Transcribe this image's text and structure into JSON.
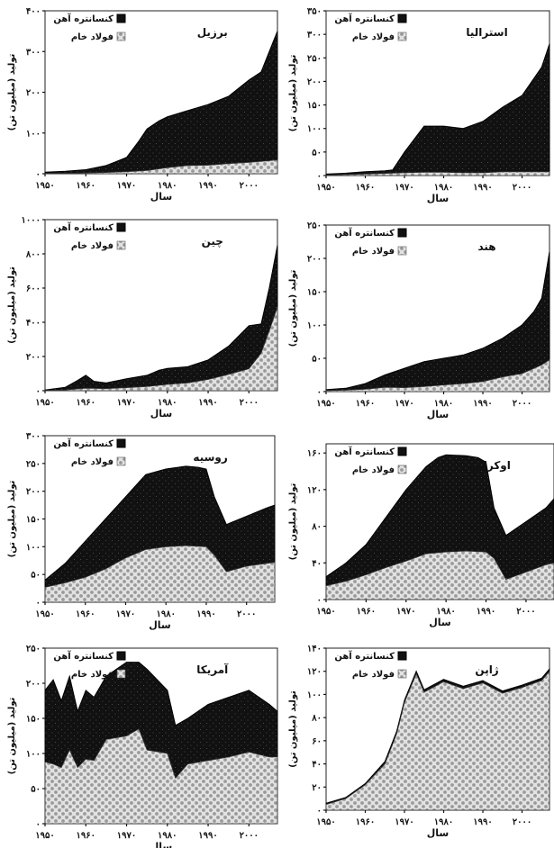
{
  "legend": {
    "ore": "کنسانتره آهن",
    "steel": "فولاد خام"
  },
  "axis_labels": {
    "y": "تولید (میلیون تن)",
    "x": "سال"
  },
  "colors": {
    "ore": "#111111",
    "steel_fill": "#e2e2e2",
    "steel_dot": "#9a9a9a"
  },
  "chart_data": [
    {
      "id": "brazil",
      "type": "area",
      "title": "برزیل",
      "ylim": [
        0,
        400
      ],
      "yticks": [
        0,
        100,
        200,
        300,
        400
      ],
      "ytick_labels": [
        "۰",
        "۱۰۰",
        "۲۰۰",
        "۳۰۰",
        "۴۰۰"
      ],
      "xlim": [
        1950,
        2007
      ],
      "xticks": [
        1950,
        1960,
        1970,
        1980,
        1990,
        2000
      ],
      "xtick_labels": [
        "۱۹۵۰",
        "۱۹۶۰",
        "۱۹۷۰",
        "۱۹۸۰",
        "۱۹۹۰",
        "۲۰۰۰"
      ],
      "series": [
        {
          "name": "فولاد خام",
          "x": [
            1950,
            1955,
            1960,
            1965,
            1970,
            1975,
            1980,
            1985,
            1990,
            1995,
            2000,
            2005,
            2007
          ],
          "values": [
            1,
            1.2,
            2,
            3,
            5,
            8,
            15,
            20,
            21,
            25,
            28,
            32,
            34
          ]
        },
        {
          "name": "کنسانتره آهن",
          "x": [
            1950,
            1955,
            1960,
            1965,
            1970,
            1973,
            1975,
            1978,
            1980,
            1985,
            1990,
            1995,
            2000,
            2003,
            2005,
            2007
          ],
          "values": [
            4,
            6,
            10,
            20,
            40,
            80,
            110,
            130,
            140,
            155,
            170,
            190,
            230,
            250,
            300,
            350
          ]
        }
      ]
    },
    {
      "id": "australia",
      "type": "area",
      "title": "استرالیا",
      "ylim": [
        0,
        350
      ],
      "yticks": [
        0,
        50,
        100,
        150,
        200,
        250,
        300,
        350
      ],
      "ytick_labels": [
        "۰",
        "۵۰",
        "۱۰۰",
        "۱۵۰",
        "۲۰۰",
        "۲۵۰",
        "۳۰۰",
        "۳۵۰"
      ],
      "xlim": [
        1950,
        2007
      ],
      "xticks": [
        1950,
        1960,
        1970,
        1980,
        1990,
        2000
      ],
      "xtick_labels": [
        "۱۹۵۰",
        "۱۹۶۰",
        "۱۹۷۰",
        "۱۹۸۰",
        "۱۹۹۰",
        "۲۰۰۰"
      ],
      "series": [
        {
          "name": "فولاد خام",
          "x": [
            1950,
            1960,
            1970,
            1975,
            1980,
            1985,
            1990,
            1995,
            2000,
            2007
          ],
          "values": [
            1,
            3,
            6,
            7,
            7,
            6,
            6,
            8,
            8,
            8
          ]
        },
        {
          "name": "کنسانتره آهن",
          "x": [
            1950,
            1955,
            1960,
            1965,
            1967,
            1970,
            1975,
            1980,
            1985,
            1990,
            1995,
            2000,
            2005,
            2007
          ],
          "values": [
            3,
            5,
            8,
            10,
            12,
            50,
            105,
            105,
            100,
            115,
            145,
            170,
            230,
            280
          ]
        }
      ]
    },
    {
      "id": "china",
      "type": "area",
      "title": "چین",
      "ylim": [
        0,
        1000
      ],
      "yticks": [
        0,
        200,
        400,
        600,
        800,
        1000
      ],
      "ytick_labels": [
        "۰",
        "۲۰۰",
        "۴۰۰",
        "۶۰۰",
        "۸۰۰",
        "۱۰۰۰"
      ],
      "xlim": [
        1950,
        2007
      ],
      "xticks": [
        1950,
        1960,
        1970,
        1980,
        1990,
        2000
      ],
      "xtick_labels": [
        "۱۹۵۰",
        "۱۹۶۰",
        "۱۹۷۰",
        "۱۹۸۰",
        "۱۹۹۰",
        "۲۰۰۰"
      ],
      "series": [
        {
          "name": "فولاد خام",
          "x": [
            1950,
            1955,
            1960,
            1965,
            1970,
            1975,
            1980,
            1985,
            1990,
            1995,
            2000,
            2003,
            2005,
            2007
          ],
          "values": [
            1,
            4,
            15,
            12,
            18,
            24,
            37,
            45,
            66,
            95,
            128,
            220,
            350,
            490
          ]
        },
        {
          "name": "کنسانتره آهن",
          "x": [
            1950,
            1955,
            1958,
            1960,
            1962,
            1965,
            1970,
            1975,
            1978,
            1980,
            1985,
            1990,
            1995,
            2000,
            2003,
            2005,
            2007
          ],
          "values": [
            4,
            20,
            60,
            90,
            55,
            45,
            70,
            90,
            120,
            130,
            140,
            180,
            260,
            380,
            390,
            600,
            850
          ]
        }
      ]
    },
    {
      "id": "india",
      "type": "area",
      "title": "هند",
      "ylim": [
        0,
        250
      ],
      "yticks": [
        0,
        50,
        100,
        150,
        200,
        250
      ],
      "ytick_labels": [
        "۰",
        "۵۰",
        "۱۰۰",
        "۱۵۰",
        "۲۰۰",
        "۲۵۰"
      ],
      "xlim": [
        1950,
        2007
      ],
      "xticks": [
        1950,
        1960,
        1970,
        1980,
        1990,
        2000
      ],
      "xtick_labels": [
        "۱۹۵۰",
        "۱۹۶۰",
        "۱۹۷۰",
        "۱۹۸۰",
        "۱۹۹۰",
        "۲۰۰۰"
      ],
      "series": [
        {
          "name": "فولاد خام",
          "x": [
            1950,
            1955,
            1960,
            1965,
            1970,
            1975,
            1980,
            1985,
            1990,
            1995,
            2000,
            2005,
            2007
          ],
          "values": [
            1.5,
            2,
            3.5,
            6.5,
            6,
            7.5,
            10,
            12,
            15,
            22,
            27,
            40,
            48
          ]
        },
        {
          "name": "کنسانتره آهن",
          "x": [
            1950,
            1955,
            1960,
            1965,
            1970,
            1975,
            1980,
            1985,
            1990,
            1995,
            2000,
            2003,
            2005,
            2007
          ],
          "values": [
            3,
            5,
            12,
            25,
            35,
            45,
            50,
            55,
            65,
            80,
            100,
            120,
            140,
            210
          ]
        }
      ]
    },
    {
      "id": "russia",
      "type": "area",
      "title": "روسیه",
      "ylim": [
        0,
        300
      ],
      "yticks": [
        0,
        50,
        100,
        150,
        200,
        250,
        300
      ],
      "ytick_labels": [
        "۰",
        "۵۰",
        "۱۰۰",
        "۱۵۰",
        "۲۰۰",
        "۲۵۰",
        "۳۰۰"
      ],
      "xlim": [
        1950,
        2007
      ],
      "xticks": [
        1950,
        1960,
        1970,
        1980,
        1990,
        2000
      ],
      "xtick_labels": [
        "۱۹۵۰",
        "۱۹۶۰",
        "۱۹۷۰",
        "۱۹۸۰",
        "۱۹۹۰",
        "۲۰۰۰"
      ],
      "series": [
        {
          "name": "فولاد خام",
          "x": [
            1950,
            1955,
            1960,
            1965,
            1970,
            1975,
            1980,
            1985,
            1990,
            1992,
            1995,
            2000,
            2005,
            2007
          ],
          "values": [
            27,
            35,
            45,
            60,
            80,
            95,
            100,
            102,
            100,
            85,
            55,
            65,
            70,
            72
          ]
        },
        {
          "name": "کنسانتره آهن",
          "x": [
            1950,
            1955,
            1960,
            1965,
            1970,
            1975,
            1980,
            1985,
            1988,
            1990,
            1992,
            1995,
            2000,
            2005,
            2007
          ],
          "values": [
            40,
            70,
            110,
            150,
            190,
            230,
            240,
            245,
            243,
            240,
            190,
            140,
            155,
            170,
            175
          ]
        }
      ]
    },
    {
      "id": "ukraine",
      "type": "area",
      "title": "اوکراین",
      "ylim": [
        0,
        170
      ],
      "yticks": [
        0,
        40,
        80,
        120,
        160
      ],
      "ytick_labels": [
        "۰",
        "۴۰",
        "۸۰",
        "۱۲۰",
        "۱۶۰"
      ],
      "xlim": [
        1950,
        2007
      ],
      "xticks": [
        1950,
        1960,
        1970,
        1980,
        1990,
        2000
      ],
      "xtick_labels": [
        "۱۹۵۰",
        "۱۹۶۰",
        "۱۹۷۰",
        "۱۹۸۰",
        "۱۹۹۰",
        "۲۰۰۰"
      ],
      "series": [
        {
          "name": "فولاد خام",
          "x": [
            1950,
            1955,
            1960,
            1965,
            1970,
            1975,
            1980,
            1985,
            1990,
            1992,
            1995,
            2000,
            2005,
            2007
          ],
          "values": [
            15,
            20,
            27,
            35,
            42,
            50,
            52,
            53,
            52,
            45,
            22,
            30,
            38,
            40
          ]
        },
        {
          "name": "کنسانتره آهن",
          "x": [
            1950,
            1955,
            1960,
            1965,
            1970,
            1975,
            1978,
            1980,
            1985,
            1988,
            1990,
            1992,
            1995,
            2000,
            2005,
            2007
          ],
          "values": [
            25,
            40,
            60,
            90,
            120,
            145,
            155,
            158,
            157,
            155,
            150,
            100,
            70,
            85,
            100,
            110
          ]
        }
      ]
    },
    {
      "id": "usa",
      "type": "area",
      "title": "آمریکا",
      "ylim": [
        0,
        250
      ],
      "yticks": [
        0,
        50,
        100,
        150,
        200,
        250
      ],
      "ytick_labels": [
        "۰",
        "۵۰",
        "۱۰۰",
        "۱۵۰",
        "۲۰۰",
        "۲۵۰"
      ],
      "xlim": [
        1950,
        2007
      ],
      "xticks": [
        1950,
        1960,
        1970,
        1980,
        1990,
        2000
      ],
      "xtick_labels": [
        "۱۹۵۰",
        "۱۹۶۰",
        "۱۹۷۰",
        "۱۹۸۰",
        "۱۹۹۰",
        "۲۰۰۰"
      ],
      "series": [
        {
          "name": "فولاد خام",
          "x": [
            1950,
            1952,
            1954,
            1956,
            1958,
            1960,
            1962,
            1965,
            1970,
            1973,
            1975,
            1980,
            1982,
            1985,
            1990,
            1995,
            2000,
            2005,
            2007
          ],
          "values": [
            88,
            85,
            80,
            105,
            80,
            92,
            90,
            120,
            125,
            135,
            105,
            100,
            65,
            85,
            90,
            95,
            102,
            95,
            95
          ]
        },
        {
          "name": "کنسانتره آهن",
          "x": [
            1950,
            1952,
            1954,
            1956,
            1958,
            1960,
            1962,
            1965,
            1970,
            1973,
            1975,
            1980,
            1982,
            1985,
            1990,
            1995,
            2000,
            2005,
            2007
          ],
          "values": [
            190,
            205,
            175,
            210,
            160,
            190,
            180,
            210,
            230,
            230,
            220,
            190,
            140,
            150,
            170,
            180,
            190,
            170,
            160
          ]
        }
      ]
    },
    {
      "id": "japan",
      "type": "area",
      "title": "ژاپن",
      "ylim": [
        0,
        140
      ],
      "yticks": [
        0,
        20,
        40,
        60,
        80,
        100,
        120,
        140
      ],
      "ytick_labels": [
        "۰",
        "۲۰",
        "۴۰",
        "۶۰",
        "۸۰",
        "۱۰۰",
        "۱۲۰",
        "۱۴۰"
      ],
      "xlim": [
        1950,
        2007
      ],
      "xticks": [
        1950,
        1960,
        1970,
        1980,
        1990,
        2000
      ],
      "xtick_labels": [
        "۱۹۵۰",
        "۱۹۶۰",
        "۱۹۷۰",
        "۱۹۸۰",
        "۱۹۹۰",
        "۲۰۰۰"
      ],
      "series": [
        {
          "name": "فولاد خام",
          "x": [
            1950,
            1955,
            1960,
            1965,
            1968,
            1970,
            1973,
            1975,
            1980,
            1985,
            1990,
            1995,
            2000,
            2005,
            2007
          ],
          "values": [
            5,
            10,
            22,
            40,
            66,
            93,
            118,
            102,
            111,
            105,
            110,
            101,
            106,
            112,
            120
          ]
        },
        {
          "name": "کنسانتره آهن",
          "x": [
            1950,
            1955,
            1960,
            1965,
            1968,
            1970,
            1973,
            1975,
            1980,
            1985,
            1990,
            1995,
            2000,
            2005,
            2007
          ],
          "values": [
            6,
            11,
            23,
            42,
            68,
            95,
            120,
            104,
            113,
            107,
            112,
            103,
            108,
            114,
            122
          ]
        }
      ]
    }
  ]
}
